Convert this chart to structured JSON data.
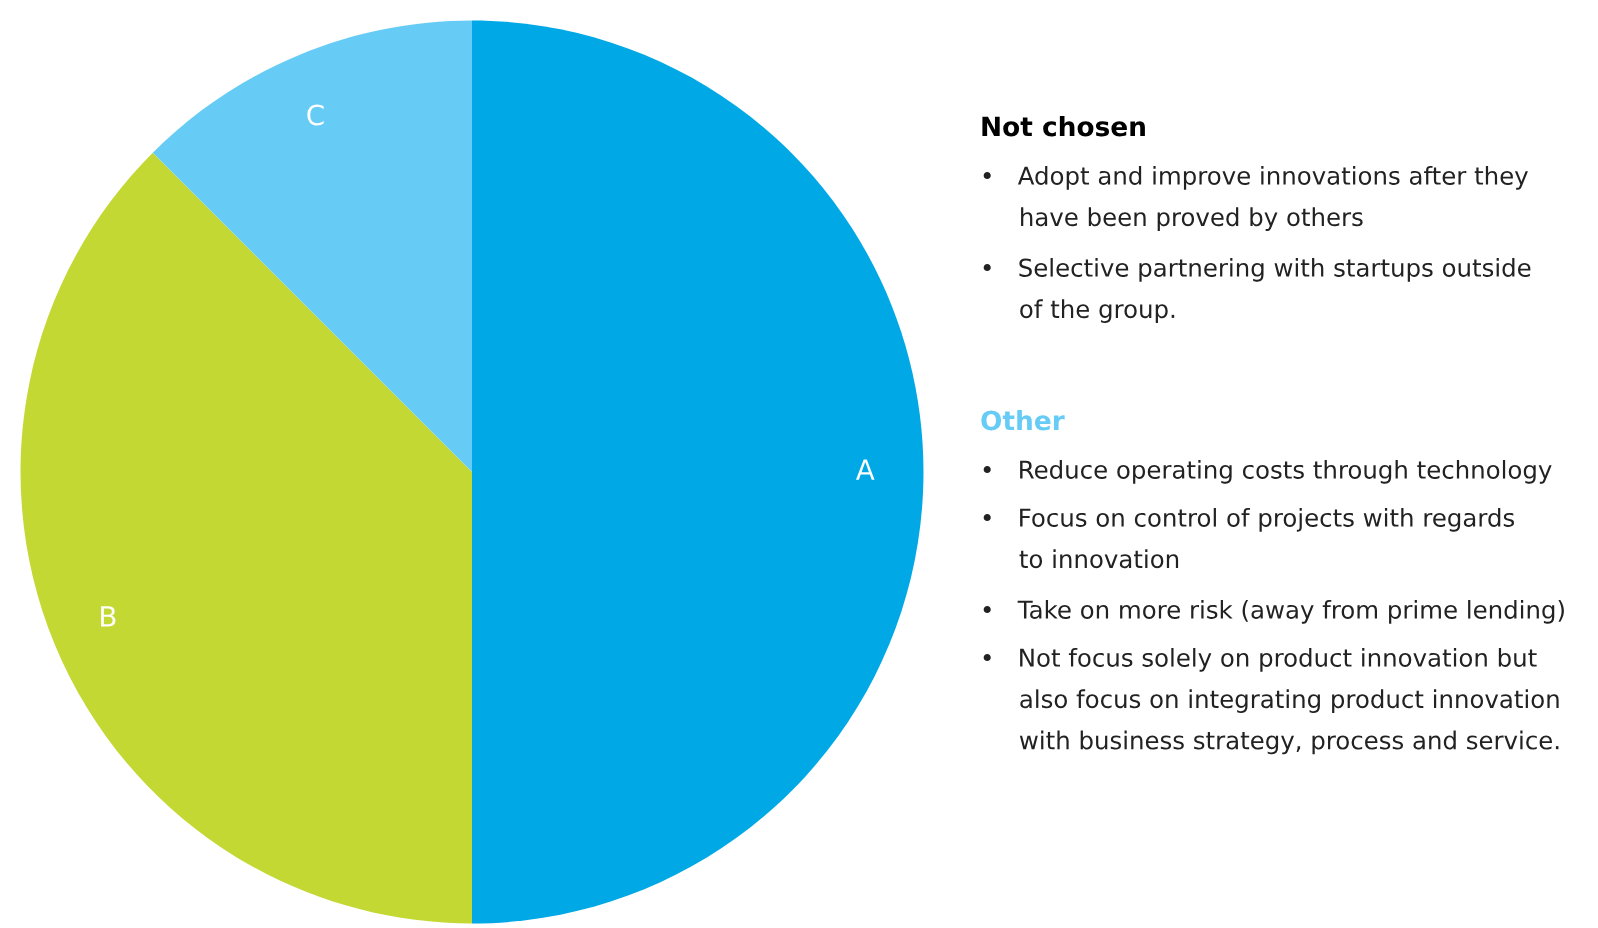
{
  "chart_data": {
    "type": "pie",
    "categories": [
      "A",
      "B",
      "C"
    ],
    "values": [
      50,
      37.5,
      12.5
    ],
    "colors": [
      "#00a9e6",
      "#c3d833",
      "#66ccf5"
    ],
    "annotations": [
      "Not chosen",
      "•   Adopt and improve innovations after they\n     have been proved by others",
      "•   Selective partnering with startups outside\n     of the group.",
      "Other",
      "•   Reduce operating costs through technology",
      "•   Focus on control of projects with regards\n     to innovation",
      "•   Take on more risk (away from prime lending)",
      "•   Not focus solely on product innovation but\n     also focus on integrating product innovation\n     with business strategy, process and service."
    ]
  }
}
